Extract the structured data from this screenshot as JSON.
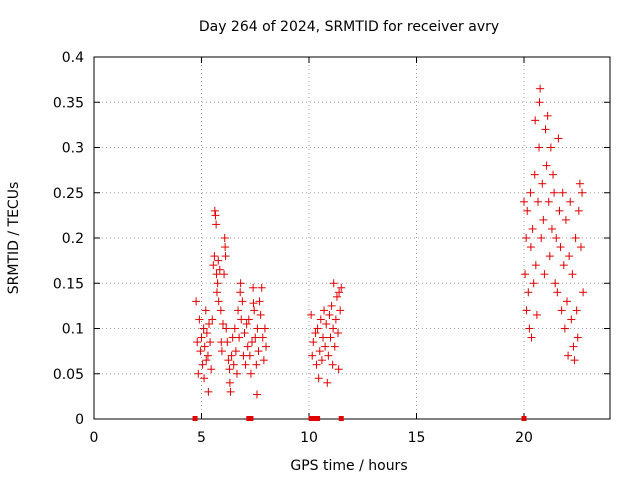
{
  "chart_data": {
    "type": "scatter",
    "title": "Day 264 of 2024, SRMTID for receiver avry",
    "xlabel": "GPS time / hours",
    "ylabel": "SRMTID / TECUs",
    "xlim": [
      0,
      24
    ],
    "ylim": [
      0,
      0.4
    ],
    "xticks": [
      0,
      5,
      10,
      15,
      20
    ],
    "xtick_labels": [
      "0",
      "5",
      "10",
      "15",
      "20"
    ],
    "yticks": [
      0,
      0.05,
      0.1,
      0.15,
      0.2,
      0.25,
      0.3,
      0.35,
      0.4
    ],
    "ytick_labels": [
      "0",
      "0.05",
      "0.1",
      "0.15",
      "0.2",
      "0.25",
      "0.3",
      "0.35",
      "0.4"
    ],
    "grid": true,
    "marker": "+",
    "color": "#e00000",
    "series": [
      {
        "name": "SRMTID",
        "points": [
          [
            4.75,
            0.13
          ],
          [
            4.8,
            0.085
          ],
          [
            4.85,
            0.05
          ],
          [
            4.9,
            0.11
          ],
          [
            4.95,
            0.075
          ],
          [
            5.0,
            0.09
          ],
          [
            5.05,
            0.06
          ],
          [
            5.1,
            0.1
          ],
          [
            5.12,
            0.045
          ],
          [
            5.15,
            0.08
          ],
          [
            5.2,
            0.12
          ],
          [
            5.22,
            0.065
          ],
          [
            5.25,
            0.095
          ],
          [
            5.3,
            0.07
          ],
          [
            5.32,
            0.03
          ],
          [
            5.35,
            0.105
          ],
          [
            5.4,
            0.085
          ],
          [
            5.45,
            0.055
          ],
          [
            5.5,
            0.11
          ],
          [
            5.55,
            0.17
          ],
          [
            5.6,
            0.18
          ],
          [
            5.62,
            0.23
          ],
          [
            5.65,
            0.225
          ],
          [
            5.68,
            0.215
          ],
          [
            5.7,
            0.16
          ],
          [
            5.72,
            0.14
          ],
          [
            5.75,
            0.15
          ],
          [
            5.78,
            0.175
          ],
          [
            5.8,
            0.13
          ],
          [
            5.85,
            0.165
          ],
          [
            5.9,
            0.12
          ],
          [
            5.92,
            0.085
          ],
          [
            5.95,
            0.075
          ],
          [
            6.0,
            0.105
          ],
          [
            6.05,
            0.16
          ],
          [
            6.08,
            0.2
          ],
          [
            6.1,
            0.19
          ],
          [
            6.12,
            0.18
          ],
          [
            6.15,
            0.1
          ],
          [
            6.2,
            0.085
          ],
          [
            6.25,
            0.065
          ],
          [
            6.3,
            0.055
          ],
          [
            6.32,
            0.04
          ],
          [
            6.35,
            0.03
          ],
          [
            6.4,
            0.07
          ],
          [
            6.45,
            0.09
          ],
          [
            6.5,
            0.06
          ],
          [
            6.55,
            0.1
          ],
          [
            6.6,
            0.075
          ],
          [
            6.65,
            0.05
          ],
          [
            6.7,
            0.12
          ],
          [
            6.75,
            0.09
          ],
          [
            6.8,
            0.14
          ],
          [
            6.82,
            0.15
          ],
          [
            6.85,
            0.11
          ],
          [
            6.9,
            0.13
          ],
          [
            6.95,
            0.07
          ],
          [
            7.0,
            0.095
          ],
          [
            7.05,
            0.06
          ],
          [
            7.1,
            0.105
          ],
          [
            7.15,
            0.08
          ],
          [
            7.2,
            0.11
          ],
          [
            7.25,
            0.07
          ],
          [
            7.3,
            0.05
          ],
          [
            7.35,
            0.085
          ],
          [
            7.4,
            0.145
          ],
          [
            7.42,
            0.128
          ],
          [
            7.45,
            0.12
          ],
          [
            7.5,
            0.09
          ],
          [
            7.55,
            0.06
          ],
          [
            7.58,
            0.027
          ],
          [
            7.6,
            0.1
          ],
          [
            7.65,
            0.075
          ],
          [
            7.7,
            0.13
          ],
          [
            7.75,
            0.115
          ],
          [
            7.8,
            0.145
          ],
          [
            7.85,
            0.09
          ],
          [
            7.9,
            0.065
          ],
          [
            7.95,
            0.1
          ],
          [
            8.0,
            0.08
          ],
          [
            10.1,
            0.115
          ],
          [
            10.15,
            0.07
          ],
          [
            10.2,
            0.085
          ],
          [
            10.3,
            0.095
          ],
          [
            10.35,
            0.06
          ],
          [
            10.4,
            0.1
          ],
          [
            10.45,
            0.045
          ],
          [
            10.5,
            0.075
          ],
          [
            10.55,
            0.11
          ],
          [
            10.6,
            0.065
          ],
          [
            10.65,
            0.09
          ],
          [
            10.7,
            0.12
          ],
          [
            10.75,
            0.08
          ],
          [
            10.8,
            0.105
          ],
          [
            10.85,
            0.04
          ],
          [
            10.9,
            0.07
          ],
          [
            10.95,
            0.115
          ],
          [
            11.0,
            0.09
          ],
          [
            11.05,
            0.125
          ],
          [
            11.1,
            0.06
          ],
          [
            11.12,
            0.1
          ],
          [
            11.15,
            0.15
          ],
          [
            11.2,
            0.08
          ],
          [
            11.25,
            0.11
          ],
          [
            11.3,
            0.135
          ],
          [
            11.35,
            0.095
          ],
          [
            11.38,
            0.055
          ],
          [
            11.4,
            0.14
          ],
          [
            11.45,
            0.12
          ],
          [
            11.5,
            0.145
          ],
          [
            20.0,
            0.24
          ],
          [
            20.05,
            0.16
          ],
          [
            20.1,
            0.2
          ],
          [
            20.12,
            0.12
          ],
          [
            20.15,
            0.23
          ],
          [
            20.2,
            0.14
          ],
          [
            20.25,
            0.1
          ],
          [
            20.3,
            0.25
          ],
          [
            20.32,
            0.19
          ],
          [
            20.35,
            0.09
          ],
          [
            20.4,
            0.21
          ],
          [
            20.45,
            0.15
          ],
          [
            20.5,
            0.27
          ],
          [
            20.52,
            0.33
          ],
          [
            20.55,
            0.17
          ],
          [
            20.6,
            0.115
          ],
          [
            20.65,
            0.24
          ],
          [
            20.7,
            0.3
          ],
          [
            20.72,
            0.35
          ],
          [
            20.75,
            0.365
          ],
          [
            20.8,
            0.2
          ],
          [
            20.85,
            0.26
          ],
          [
            20.9,
            0.22
          ],
          [
            20.95,
            0.16
          ],
          [
            21.0,
            0.32
          ],
          [
            21.05,
            0.28
          ],
          [
            21.1,
            0.335
          ],
          [
            21.15,
            0.24
          ],
          [
            21.2,
            0.18
          ],
          [
            21.25,
            0.3
          ],
          [
            21.3,
            0.21
          ],
          [
            21.35,
            0.27
          ],
          [
            21.4,
            0.25
          ],
          [
            21.45,
            0.15
          ],
          [
            21.5,
            0.2
          ],
          [
            21.55,
            0.14
          ],
          [
            21.6,
            0.31
          ],
          [
            21.65,
            0.23
          ],
          [
            21.7,
            0.19
          ],
          [
            21.75,
            0.12
          ],
          [
            21.8,
            0.25
          ],
          [
            21.85,
            0.17
          ],
          [
            21.9,
            0.1
          ],
          [
            21.95,
            0.22
          ],
          [
            22.0,
            0.13
          ],
          [
            22.05,
            0.07
          ],
          [
            22.1,
            0.18
          ],
          [
            22.15,
            0.24
          ],
          [
            22.2,
            0.11
          ],
          [
            22.25,
            0.16
          ],
          [
            22.3,
            0.08
          ],
          [
            22.35,
            0.065
          ],
          [
            22.4,
            0.2
          ],
          [
            22.45,
            0.12
          ],
          [
            22.5,
            0.09
          ],
          [
            22.55,
            0.23
          ],
          [
            22.6,
            0.26
          ],
          [
            22.65,
            0.19
          ],
          [
            22.7,
            0.25
          ],
          [
            22.75,
            0.14
          ]
        ]
      }
    ],
    "zero_markers_x": [
      4.7,
      7.2,
      7.3,
      10.1,
      10.3,
      10.4,
      11.5,
      20.0
    ]
  }
}
